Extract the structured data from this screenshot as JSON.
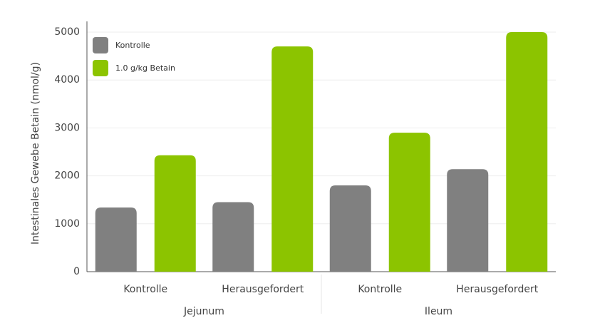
{
  "chart_data": {
    "type": "bar",
    "y_label": "Intestinales Gewebe Betain (nmol/g)",
    "categories": [
      "Kontrolle",
      "Herausgefordert",
      "Kontrolle",
      "Herausgefordert"
    ],
    "groups": [
      "Jejunum",
      "Ileum"
    ],
    "series": [
      {
        "name": "Kontrolle",
        "color": "#808080",
        "values": [
          1340,
          1450,
          1800,
          2140
        ]
      },
      {
        "name": "1.0 g/kg Betain",
        "color": "#8cc400",
        "values": [
          2430,
          4700,
          2900,
          5000
        ]
      }
    ],
    "ylim": [
      0,
      5000
    ],
    "yticks": [
      0,
      1000,
      2000,
      3000,
      4000,
      5000
    ],
    "grid": true,
    "legend": "top-left"
  }
}
